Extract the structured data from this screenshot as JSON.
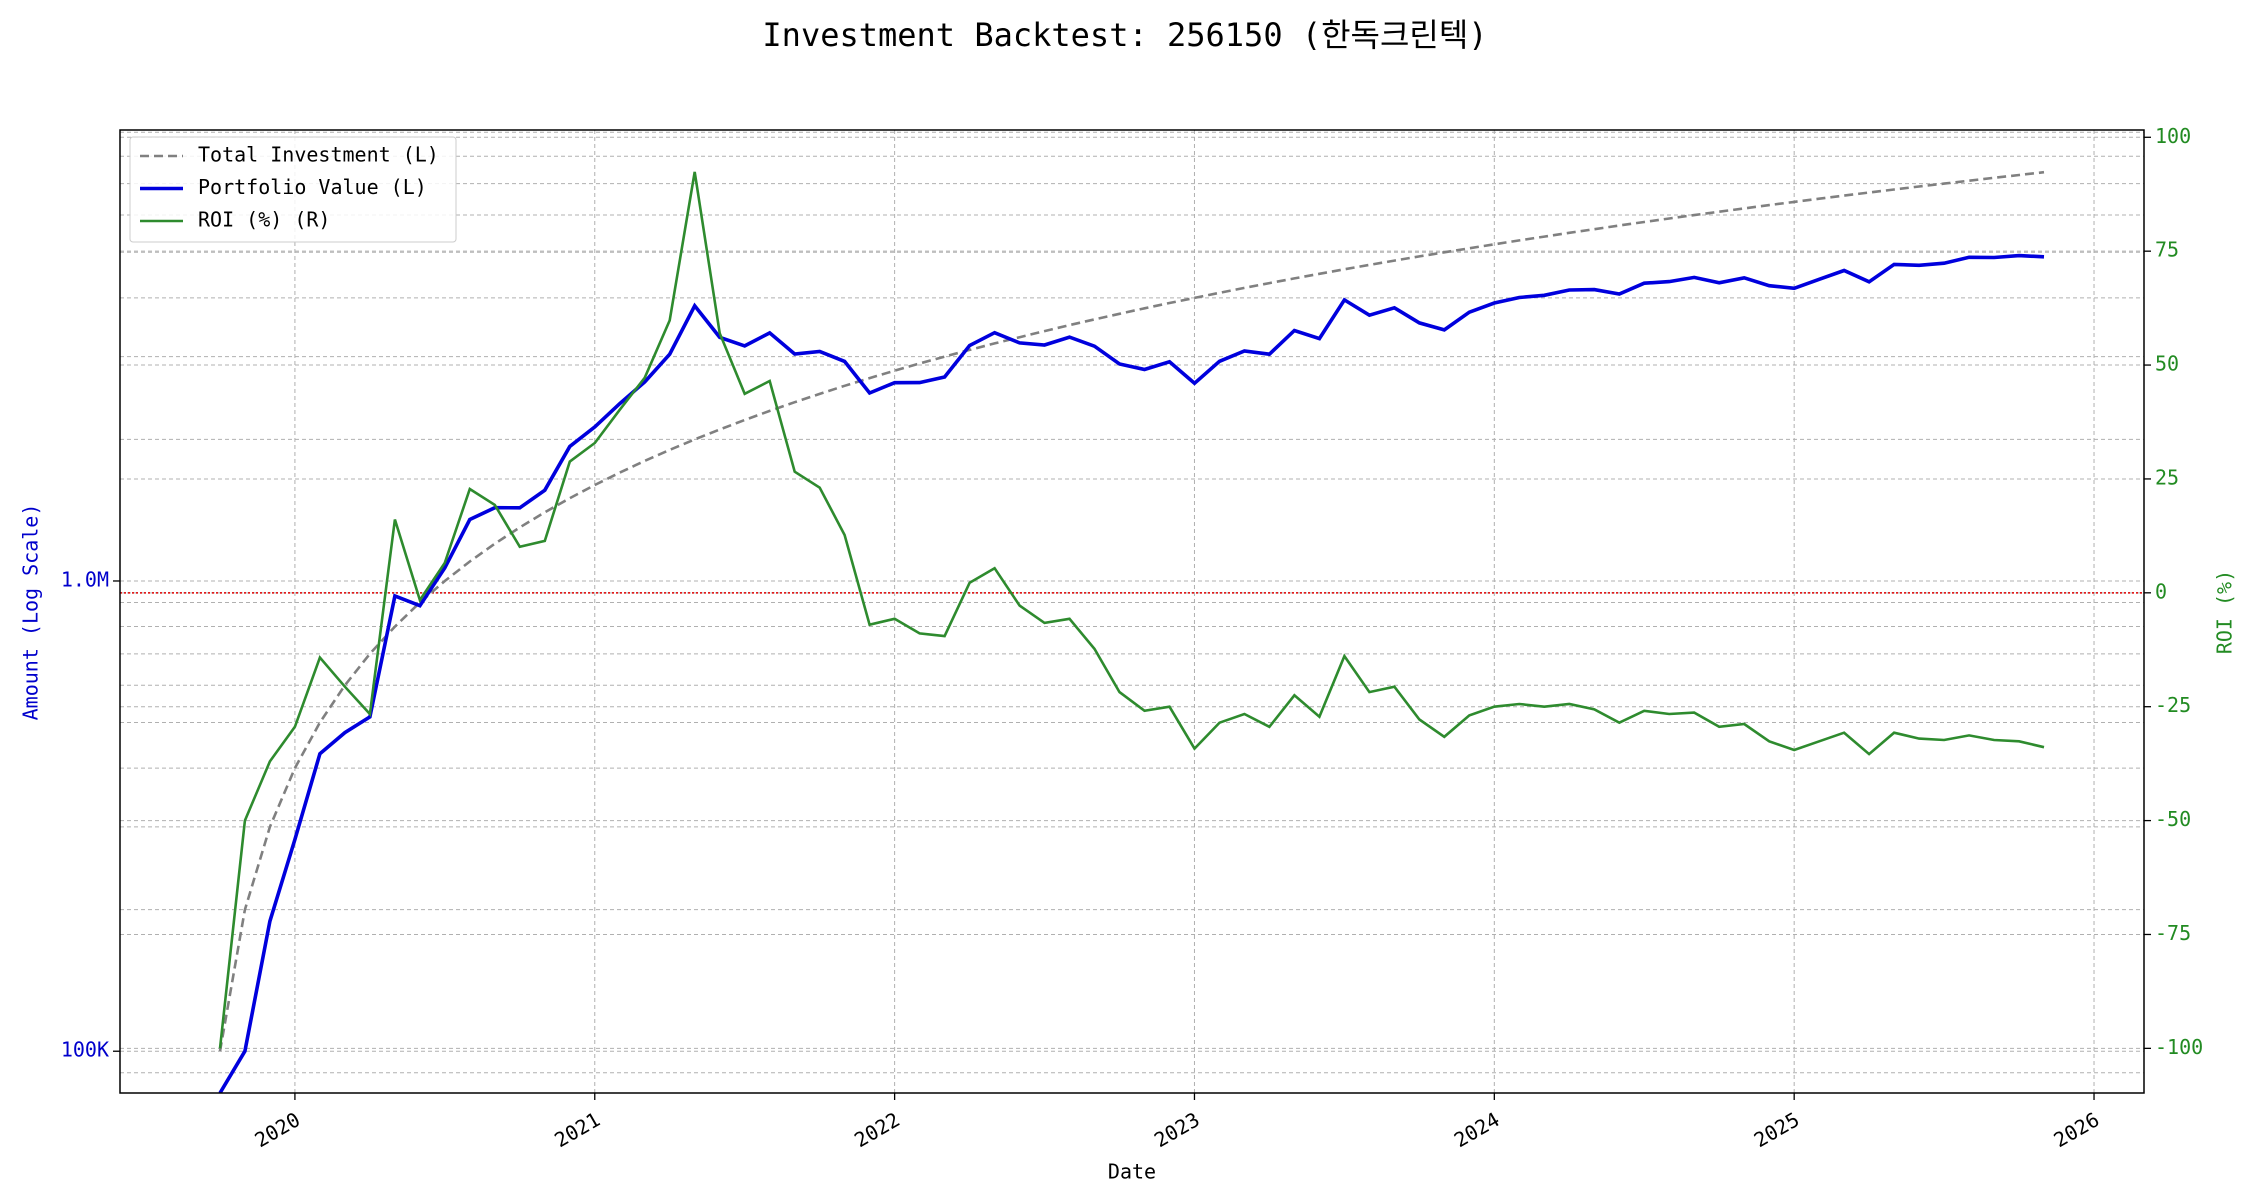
{
  "chart_data": {
    "type": "line",
    "title": "Investment Backtest: 256150 (한독크린텍)",
    "xlabel": "Date",
    "ylabel": "Amount (Log Scale)",
    "y2label": "ROI (%)",
    "ylabel_color": "#0000cc",
    "y2label_color": "#228b22",
    "x": [
      "2019-10",
      "2019-11",
      "2019-12",
      "2020-01",
      "2020-02",
      "2020-03",
      "2020-04",
      "2020-05",
      "2020-06",
      "2020-07",
      "2020-08",
      "2020-09",
      "2020-10",
      "2020-11",
      "2020-12",
      "2021-01",
      "2021-02",
      "2021-03",
      "2021-04",
      "2021-05",
      "2021-06",
      "2021-07",
      "2021-08",
      "2021-09",
      "2021-10",
      "2021-11",
      "2021-12",
      "2022-01",
      "2022-02",
      "2022-03",
      "2022-04",
      "2022-05",
      "2022-06",
      "2022-07",
      "2022-08",
      "2022-09",
      "2022-10",
      "2022-11",
      "2022-12",
      "2023-01",
      "2023-02",
      "2023-03",
      "2023-04",
      "2023-05",
      "2023-06",
      "2023-07",
      "2023-08",
      "2023-09",
      "2023-10",
      "2023-11",
      "2023-12",
      "2024-01",
      "2024-02",
      "2024-03",
      "2024-04",
      "2024-05",
      "2024-06",
      "2024-07",
      "2024-08",
      "2024-09",
      "2024-10",
      "2024-11",
      "2024-12",
      "2025-01",
      "2025-02",
      "2025-03",
      "2025-04",
      "2025-05",
      "2025-06",
      "2025-07",
      "2025-08",
      "2025-09",
      "2025-10",
      "2025-11"
    ],
    "series": [
      {
        "name": "Total Investment (L)",
        "color": "#808080",
        "dash": true,
        "axis": "y",
        "values": [
          100000,
          200000,
          300000,
          400000,
          500000,
          600000,
          700000,
          800000,
          900000,
          1000000,
          1100000,
          1200000,
          1300000,
          1400000,
          1500000,
          1600000,
          1700000,
          1800000,
          1900000,
          2000000,
          2100000,
          2200000,
          2300000,
          2400000,
          2500000,
          2600000,
          2700000,
          2800000,
          2900000,
          3000000,
          3100000,
          3200000,
          3300000,
          3400000,
          3500000,
          3600000,
          3700000,
          3800000,
          3900000,
          4000000,
          4100000,
          4200000,
          4300000,
          4400000,
          4500000,
          4600000,
          4700000,
          4800000,
          4900000,
          5000000,
          5100000,
          5200000,
          5300000,
          5400000,
          5500000,
          5600000,
          5700000,
          5800000,
          5900000,
          6000000,
          6100000,
          6200000,
          6300000,
          6400000,
          6500000,
          6600000,
          6700000,
          6800000,
          6900000,
          7000000,
          7100000,
          7200000,
          7300000,
          7400000
        ]
      },
      {
        "name": "Portfolio Value (L)",
        "color": "#0000dd",
        "axis": "y",
        "values": [
          0,
          100000,
          189000,
          282000,
          429000,
          476000,
          514000,
          929000,
          886000,
          1066000,
          1351000,
          1432000,
          1431000,
          1560000,
          1932000,
          2126000,
          2383000,
          2650000,
          3036000,
          3848000,
          3297000,
          3161000,
          3370000,
          3038000,
          3078000,
          2930000,
          2511000,
          2640000,
          2642000,
          2715000,
          3168000,
          3373000,
          3208000,
          3176000,
          3301000,
          3157000,
          2893000,
          2816000,
          2925000,
          2632000,
          2932000,
          3083000,
          3036000,
          3410000,
          3276000,
          3961000,
          3675000,
          3811000,
          3538000,
          3420000,
          3728000,
          3900000,
          4007000,
          4050000,
          4158000,
          4166000,
          4076000,
          4298000,
          4331000,
          4422000,
          4307000,
          4414000,
          4246000,
          4192000,
          4381000,
          4574000,
          4328000,
          4712000,
          4692000,
          4739000,
          4878000,
          4874000,
          4920000,
          4891000
        ]
      },
      {
        "name": "ROI (%) (R)",
        "color": "#2e8b2e",
        "axis": "y2",
        "values": [
          -100,
          -50,
          -37,
          -29.4,
          -14.2,
          -20.6,
          -26.6,
          16.1,
          -1.6,
          6.6,
          22.8,
          19.3,
          10.1,
          11.4,
          28.8,
          32.9,
          40.2,
          47.2,
          59.8,
          92.4,
          57,
          43.7,
          46.5,
          26.6,
          23.1,
          12.7,
          -7,
          -5.7,
          -8.9,
          -9.5,
          2.2,
          5.4,
          -2.8,
          -6.6,
          -5.7,
          -12.3,
          -21.8,
          -25.9,
          -25,
          -34.2,
          -28.5,
          -26.6,
          -29.4,
          -22.5,
          -27.2,
          -13.9,
          -21.8,
          -20.6,
          -27.8,
          -31.6,
          -26.9,
          -25,
          -24.4,
          -25,
          -24.4,
          -25.6,
          -28.5,
          -25.9,
          -26.6,
          -26.3,
          -29.4,
          -28.8,
          -32.6,
          -34.5,
          -32.6,
          -30.7,
          -35.4,
          -30.7,
          -32,
          -32.3,
          -31.3,
          -32.3,
          -32.6,
          -33.9
        ]
      }
    ],
    "xlim": [
      "2019-06",
      "2026-03"
    ],
    "xticks": [
      {
        "value": "2020-01",
        "label": "2020"
      },
      {
        "value": "2021-01",
        "label": "2021"
      },
      {
        "value": "2022-01",
        "label": "2022"
      },
      {
        "value": "2023-01",
        "label": "2023"
      },
      {
        "value": "2024-01",
        "label": "2024"
      },
      {
        "value": "2025-01",
        "label": "2025"
      },
      {
        "value": "2026-01",
        "label": "2026"
      }
    ],
    "ylim": [
      81500,
      9100000
    ],
    "yscale": "log",
    "yticks": [
      {
        "value": 100000,
        "label": "100K"
      },
      {
        "value": 1000000,
        "label": "1.0M"
      }
    ],
    "y2lim": [
      -109.8,
      101.6
    ],
    "y2ticks": [
      -100,
      -75,
      -50,
      -25,
      0,
      25,
      50,
      75,
      100
    ],
    "hline": {
      "axis": "y2",
      "value": 0,
      "color": "#dd0000"
    },
    "grid": true,
    "legend": "upper left"
  }
}
